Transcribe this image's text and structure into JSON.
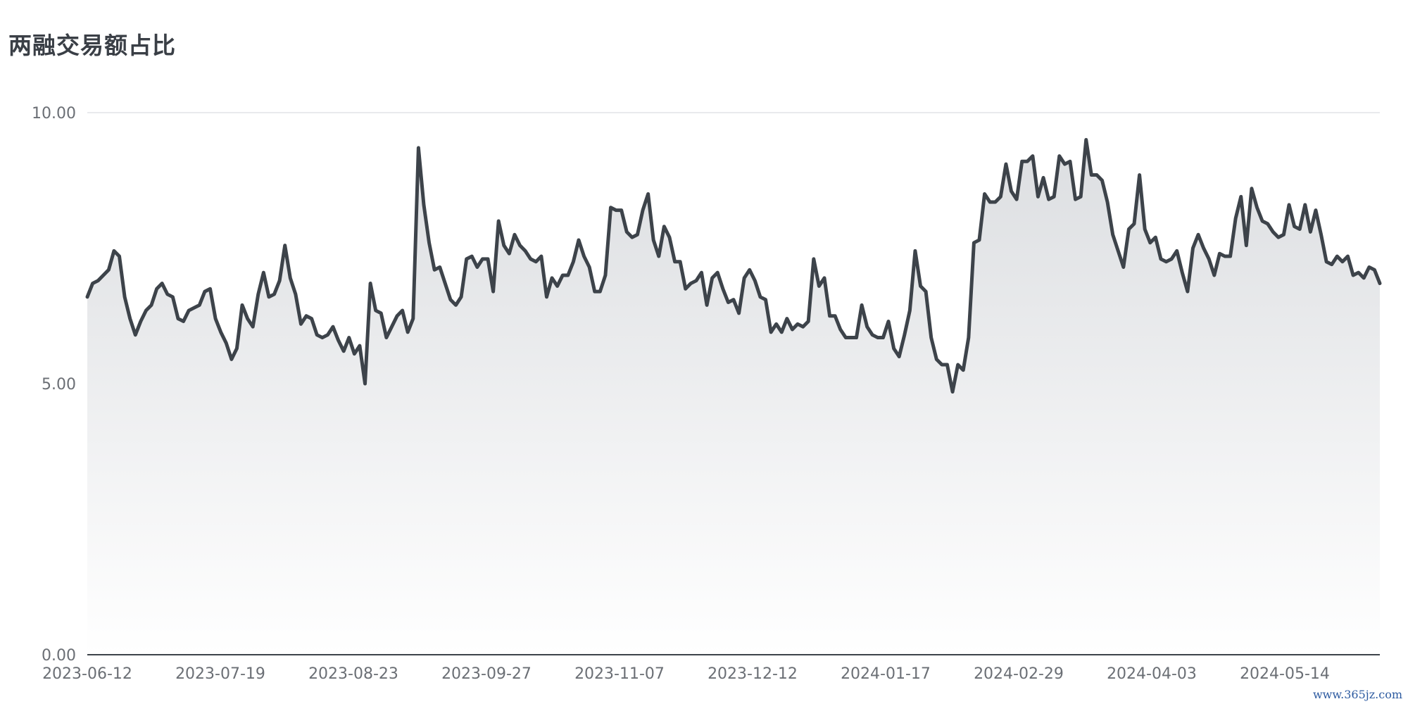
{
  "chart_data": {
    "type": "area",
    "title": "两融交易额占比",
    "xlabel": "",
    "ylabel": "",
    "ylim": [
      0,
      10
    ],
    "y_ticks": [
      "0.00",
      "5.00",
      "10.00"
    ],
    "x_tick_labels": [
      "2023-06-12",
      "2023-07-19",
      "2023-08-23",
      "2023-09-27",
      "2023-11-07",
      "2023-12-12",
      "2024-01-17",
      "2024-02-29",
      "2024-04-03",
      "2024-05-14"
    ],
    "grid": true,
    "legend": "none",
    "line_color": "#3d434a",
    "fill_color_top": "#dcdee1",
    "fill_color_bottom": "#ffffff",
    "series": [
      {
        "values": [
          6.6,
          6.85,
          6.9,
          7.0,
          7.1,
          7.45,
          7.35,
          6.6,
          6.2,
          5.9,
          6.15,
          6.35,
          6.45,
          6.75,
          6.85,
          6.65,
          6.6,
          6.2,
          6.15,
          6.35,
          6.4,
          6.45,
          6.7,
          6.75,
          6.2,
          5.95,
          5.75,
          5.45,
          5.65,
          6.45,
          6.2,
          6.05,
          6.65,
          7.05,
          6.6,
          6.65,
          6.9,
          7.55,
          6.95,
          6.65,
          6.1,
          6.25,
          6.2,
          5.9,
          5.85,
          5.9,
          6.05,
          5.8,
          5.6,
          5.85,
          5.55,
          5.7,
          5.0,
          6.85,
          6.35,
          6.3,
          5.85,
          6.05,
          6.25,
          6.35,
          5.95,
          6.2,
          9.35,
          8.3,
          7.6,
          7.1,
          7.15,
          6.85,
          6.55,
          6.45,
          6.6,
          7.3,
          7.35,
          7.15,
          7.3,
          7.3,
          6.7,
          8.0,
          7.55,
          7.4,
          7.75,
          7.55,
          7.45,
          7.3,
          7.25,
          7.35,
          6.6,
          6.95,
          6.8,
          7.0,
          7.0,
          7.25,
          7.65,
          7.35,
          7.15,
          6.7,
          6.7,
          7.0,
          8.25,
          8.2,
          8.2,
          7.8,
          7.7,
          7.75,
          8.2,
          8.5,
          7.65,
          7.35,
          7.9,
          7.7,
          7.25,
          7.25,
          6.75,
          6.85,
          6.9,
          7.05,
          6.45,
          6.95,
          7.05,
          6.75,
          6.5,
          6.55,
          6.3,
          6.95,
          7.1,
          6.9,
          6.6,
          6.55,
          5.95,
          6.1,
          5.95,
          6.2,
          6.0,
          6.1,
          6.05,
          6.15,
          7.3,
          6.8,
          6.95,
          6.25,
          6.25,
          6.0,
          5.85,
          5.85,
          5.85,
          6.45,
          6.05,
          5.9,
          5.85,
          5.85,
          6.15,
          5.65,
          5.5,
          5.9,
          6.35,
          7.45,
          6.8,
          6.7,
          5.85,
          5.45,
          5.35,
          5.35,
          4.85,
          5.35,
          5.25,
          5.85,
          7.6,
          7.65,
          8.5,
          8.35,
          8.35,
          8.45,
          9.05,
          8.55,
          8.4,
          9.1,
          9.1,
          9.2,
          8.45,
          8.8,
          8.4,
          8.45,
          9.2,
          9.05,
          9.1,
          8.4,
          8.45,
          9.5,
          8.85,
          8.85,
          8.75,
          8.35,
          7.75,
          7.45,
          7.15,
          7.85,
          7.95,
          8.85,
          7.85,
          7.6,
          7.7,
          7.3,
          7.25,
          7.3,
          7.45,
          7.05,
          6.7,
          7.5,
          7.75,
          7.5,
          7.3,
          7.0,
          7.4,
          7.35,
          7.35,
          8.05,
          8.45,
          7.55,
          8.6,
          8.25,
          8.0,
          7.95,
          7.8,
          7.7,
          7.75,
          8.3,
          7.9,
          7.85,
          8.3,
          7.8,
          8.2,
          7.75,
          7.25,
          7.2,
          7.35,
          7.25,
          7.35,
          7.0,
          7.05,
          6.95,
          7.15,
          7.1,
          6.85
        ]
      }
    ]
  },
  "watermark": "www.365jz.com"
}
